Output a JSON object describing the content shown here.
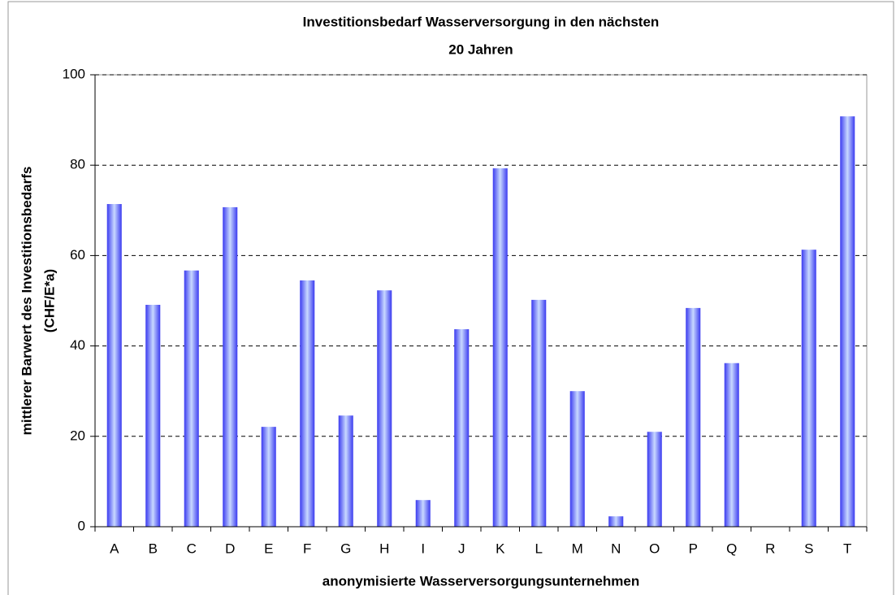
{
  "chart_data": {
    "type": "bar",
    "title": [
      "Investitionsbedarf Wasserversorgung in den nächsten",
      "20 Jahren"
    ],
    "x_label": "anonymisierte Wasserversorgungsunternehmen",
    "y_label": [
      "mittlerer Barwert des Investitionsbedarfs",
      "(CHF/E*a)"
    ],
    "categories": [
      "A",
      "B",
      "C",
      "D",
      "E",
      "F",
      "G",
      "H",
      "I",
      "J",
      "K",
      "L",
      "M",
      "N",
      "O",
      "P",
      "Q",
      "R",
      "S",
      "T"
    ],
    "values": [
      71.4,
      49.1,
      56.7,
      70.7,
      22.1,
      54.5,
      24.6,
      52.3,
      5.9,
      43.7,
      79.3,
      50.2,
      30.0,
      2.3,
      21.0,
      48.4,
      36.2,
      0,
      61.3,
      90.8
    ],
    "color": "#3b3bf0",
    "ylim": [
      0,
      100
    ],
    "yticks": [
      0,
      20,
      40,
      60,
      80,
      100
    ],
    "grid": true
  }
}
